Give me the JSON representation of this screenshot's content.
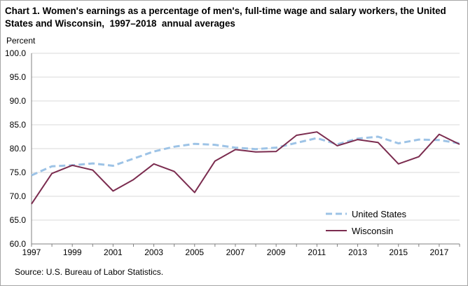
{
  "chart_data": {
    "type": "line",
    "title": "Chart 1. Women's earnings as a percentage of men's, full-time wage and salary workers, the United States and Wisconsin,  1997–2018  annual averages",
    "ylabel": "Percent",
    "xlabel": "",
    "source": "Source:  U.S. Bureau of Labor Statistics.",
    "ylim": [
      60,
      100
    ],
    "yticks": [
      "60.0",
      "65.0",
      "70.0",
      "75.0",
      "80.0",
      "85.0",
      "90.0",
      "95.0",
      "100.0"
    ],
    "ytick_values": [
      60,
      65,
      70,
      75,
      80,
      85,
      90,
      95,
      100
    ],
    "x": [
      1997,
      1998,
      1999,
      2000,
      2001,
      2002,
      2003,
      2004,
      2005,
      2006,
      2007,
      2008,
      2009,
      2010,
      2011,
      2012,
      2013,
      2014,
      2015,
      2016,
      2017,
      2018
    ],
    "xtick_labels": [
      "1997",
      "1999",
      "2001",
      "2003",
      "2005",
      "2007",
      "2009",
      "2011",
      "2013",
      "2015",
      "2017"
    ],
    "xtick_values": [
      1997,
      1999,
      2001,
      2003,
      2005,
      2007,
      2009,
      2011,
      2013,
      2015,
      2017
    ],
    "grid": true,
    "legend_position": "bottom-right",
    "series": [
      {
        "name": "United States",
        "color": "#9dc3e6",
        "style": "dashed",
        "values": [
          74.4,
          76.3,
          76.5,
          76.9,
          76.4,
          77.9,
          79.4,
          80.4,
          81.0,
          80.8,
          80.2,
          79.9,
          80.2,
          81.2,
          82.2,
          80.9,
          82.1,
          82.5,
          81.1,
          81.9,
          81.8,
          81.1
        ]
      },
      {
        "name": "Wisconsin",
        "color": "#7b2c4f",
        "style": "solid",
        "values": [
          68.4,
          74.8,
          76.5,
          75.5,
          71.1,
          73.5,
          76.8,
          75.2,
          70.8,
          77.4,
          79.8,
          79.3,
          79.4,
          82.8,
          83.5,
          80.6,
          81.9,
          81.3,
          76.8,
          78.3,
          83.0,
          80.9
        ]
      }
    ]
  }
}
